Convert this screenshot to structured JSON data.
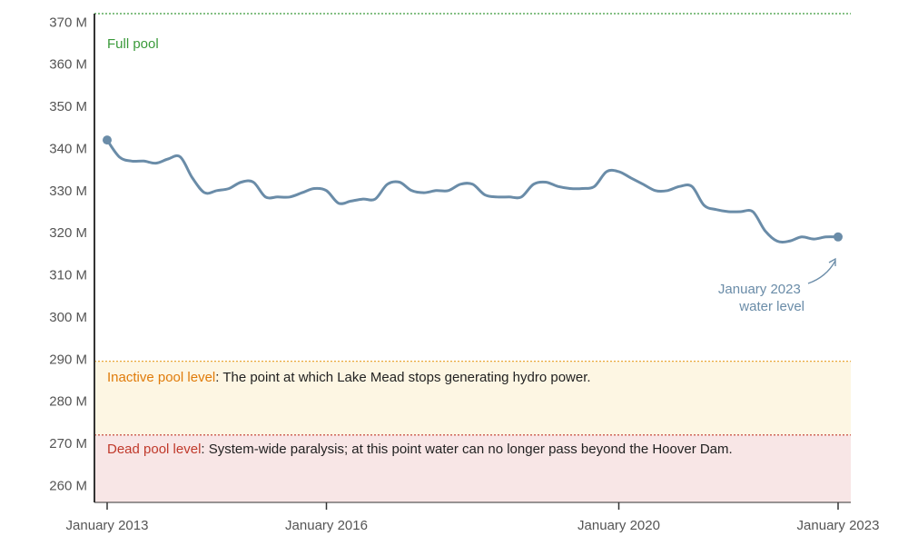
{
  "chart_data": {
    "type": "line",
    "title": "",
    "xlabel": "",
    "ylabel": "",
    "ylim": [
      256,
      372
    ],
    "xlim": [
      "2013-01",
      "2023-01"
    ],
    "x_ticks": [
      "January 2013",
      "January 2016",
      "January 2020",
      "January 2023"
    ],
    "y_ticks": [
      "260 M",
      "270 M",
      "280 M",
      "290 M",
      "300 M",
      "310 M",
      "320 M",
      "330 M",
      "340 M",
      "350 M",
      "360 M",
      "370 M"
    ],
    "y_tick_values": [
      260,
      270,
      280,
      290,
      300,
      310,
      320,
      330,
      340,
      350,
      360,
      370
    ],
    "grid": false,
    "series": [
      {
        "color": "#6a8ca8",
        "x": [
          "2013-01",
          "2013-03",
          "2013-05",
          "2013-07",
          "2013-09",
          "2013-11",
          "2014-01",
          "2014-03",
          "2014-05",
          "2014-07",
          "2014-09",
          "2014-11",
          "2015-01",
          "2015-03",
          "2015-05",
          "2015-07",
          "2015-09",
          "2015-11",
          "2016-01",
          "2016-03",
          "2016-05",
          "2016-07",
          "2016-09",
          "2016-11",
          "2017-01",
          "2017-03",
          "2017-05",
          "2017-07",
          "2017-09",
          "2017-11",
          "2018-01",
          "2018-03",
          "2018-05",
          "2018-07",
          "2018-09",
          "2018-11",
          "2019-01",
          "2019-03",
          "2019-05",
          "2019-07",
          "2019-09",
          "2019-11",
          "2020-01",
          "2020-03",
          "2020-05",
          "2020-07",
          "2020-09",
          "2020-11",
          "2021-01",
          "2021-03",
          "2021-05",
          "2021-07",
          "2021-09",
          "2021-11",
          "2022-01",
          "2022-03",
          "2022-05",
          "2022-07",
          "2022-09",
          "2022-11",
          "2023-01"
        ],
        "values": [
          342,
          338,
          337,
          337,
          336.5,
          337.5,
          338,
          333,
          329.5,
          330,
          330.5,
          332,
          332,
          328.5,
          328.5,
          328.5,
          329.5,
          330.5,
          330,
          327,
          327.5,
          328,
          328,
          331.5,
          332,
          330,
          329.5,
          330,
          330,
          331.5,
          331.5,
          329,
          328.5,
          328.5,
          328.5,
          331.5,
          332,
          331,
          330.5,
          330.5,
          331,
          334.5,
          334.5,
          333,
          331.5,
          330,
          330,
          331,
          331,
          326.5,
          325.5,
          325,
          325,
          325,
          320.5,
          318,
          318,
          319,
          318.5,
          319,
          319
        ]
      }
    ],
    "reference_lines": [
      {
        "label": "Full pool",
        "value": 372,
        "color": "#3a9a3a",
        "style": "dotted"
      },
      {
        "label": "Inactive pool level",
        "value": 289.5,
        "color": "#e8a838",
        "style": "dotted"
      },
      {
        "label": "Dead pool level",
        "value": 272,
        "color": "#c0392b",
        "style": "dotted"
      }
    ],
    "shaded_regions": [
      {
        "from": 272,
        "to": 289.5,
        "color": "#fdf6e3"
      },
      {
        "from": 256,
        "to": 272,
        "color": "#f8e6e6"
      }
    ],
    "annotations": {
      "full_pool": {
        "label": "Full pool",
        "color": "#3a9a3a"
      },
      "inactive": {
        "label": "Inactive pool level",
        "text": ": The point at which Lake Mead stops generating hydro power.",
        "color": "#e07b0a"
      },
      "dead": {
        "label": "Dead pool level",
        "text": ": System-wide paralysis; at this point water can no longer pass beyond the Hoover Dam.",
        "color": "#c0392b"
      },
      "current": {
        "lines": [
          "January 2023",
          "water level"
        ],
        "color": "#6a8ca8"
      }
    }
  }
}
